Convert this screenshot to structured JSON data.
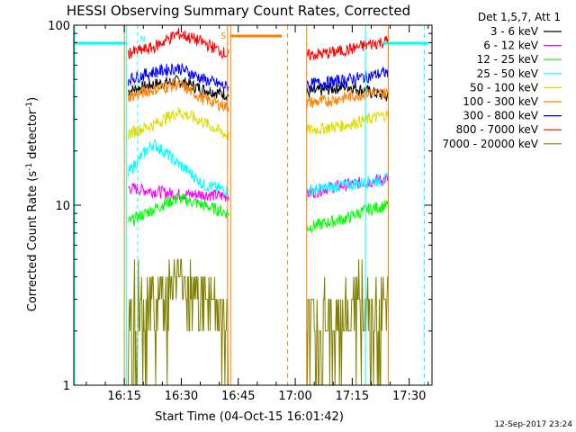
{
  "chart_data": {
    "type": "line",
    "title": "HESSI Observing Summary Count Rates, Corrected",
    "xlabel": "Start Time (04-Oct-15 16:01:42)",
    "ylabel_main": "Corrected Count Rate (s",
    "ylabel_sup1": "-1",
    "ylabel_mid": " detector",
    "ylabel_sup2": "-1",
    "ylabel_end": ")",
    "y_scale": "log",
    "ylim": [
      1,
      100
    ],
    "y_ticks": [
      {
        "value": 1,
        "label": "1"
      },
      {
        "value": 10,
        "label": "10"
      },
      {
        "value": 100,
        "label": "100"
      }
    ],
    "xlim": [
      "16:01:42",
      "17:36:00"
    ],
    "x_ticks": [
      "16:15",
      "16:30",
      "16:45",
      "17:00",
      "17:15",
      "17:30"
    ],
    "legend_title": "Det 1,5,7, Att 1",
    "legend_position": "right",
    "timestamp": "12-Sep-2017 23:24",
    "flags": {
      "saa_label": "S",
      "night_label": "N"
    },
    "intervals": [
      {
        "start": "16:16:00",
        "end": "16:42:30"
      },
      {
        "start": "17:03:00",
        "end": "17:24:30"
      }
    ],
    "series": [
      {
        "name": "3 - 6 keV",
        "color": "#000000",
        "values": [
          43,
          47,
          49,
          44,
          41,
          42,
          44,
          46,
          43,
          40
        ]
      },
      {
        "name": "6 - 12 keV",
        "color": "#ff00ff",
        "values": [
          12.5,
          12,
          11.5,
          11.5,
          11.2,
          11.5,
          12.5,
          13,
          13.5,
          14
        ]
      },
      {
        "name": "12 - 25 keV",
        "color": "#00ff00",
        "values": [
          8,
          9.5,
          11,
          10,
          9,
          7.5,
          8,
          8.5,
          9.5,
          10
        ]
      },
      {
        "name": "25 - 50 keV",
        "color": "#00ffff",
        "values": [
          15,
          22,
          17,
          13,
          12,
          12,
          12.5,
          13,
          13.5,
          14
        ]
      },
      {
        "name": "50 - 100 keV",
        "color": "#dddd00",
        "values": [
          25,
          28,
          33,
          29,
          24,
          26,
          27,
          28,
          30,
          32
        ]
      },
      {
        "name": "100 - 300 keV",
        "color": "#ff7f00",
        "values": [
          40,
          44,
          47,
          39,
          35,
          37,
          38,
          40,
          42,
          42
        ]
      },
      {
        "name": "300 - 800 keV",
        "color": "#0000ff",
        "values": [
          50,
          55,
          58,
          50,
          45,
          47,
          48,
          50,
          52,
          55
        ]
      },
      {
        "name": "800 - 7000 keV",
        "color": "#ff0000",
        "values": [
          70,
          75,
          90,
          80,
          68,
          68,
          70,
          73,
          78,
          82
        ]
      },
      {
        "name": "7000 - 20000 keV",
        "color": "#808000",
        "values": [
          2,
          3,
          4,
          3,
          2,
          2,
          2.2,
          2.5,
          2.5,
          2.5
        ]
      }
    ]
  }
}
